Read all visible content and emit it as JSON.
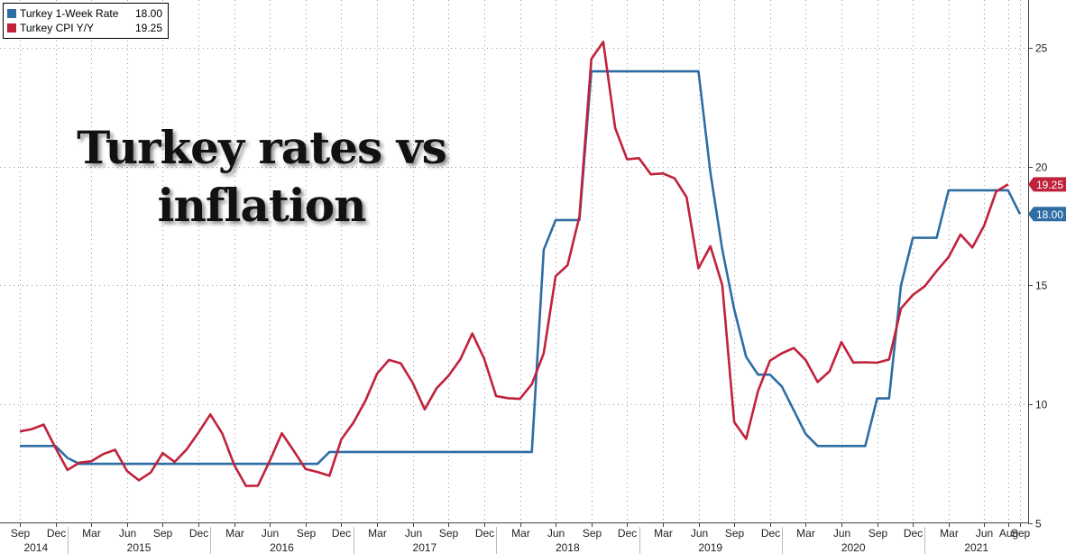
{
  "legend": {
    "items": [
      {
        "name": "Turkey 1-Week Rate",
        "value": "18.00",
        "color": "#2e6da4"
      },
      {
        "name": "Turkey CPI Y/Y",
        "value": "19.25",
        "color": "#c0223b"
      }
    ]
  },
  "overlay_title": [
    "Turkey rates vs",
    "inflation"
  ],
  "chart_data": {
    "type": "line",
    "title": "",
    "xlabel": "",
    "ylabel": "",
    "ylim": [
      5,
      27
    ],
    "xlim": [
      "2014-09",
      "2021-09"
    ],
    "y_ticks": [
      5,
      10,
      15,
      20,
      25
    ],
    "grid": true,
    "legend_position": "top-left",
    "x_month_ticks": [
      "Sep",
      "Dec",
      "Mar",
      "Jun",
      "Sep",
      "Dec",
      "Mar",
      "Jun",
      "Sep",
      "Dec",
      "Mar",
      "Jun",
      "Sep",
      "Dec",
      "Mar",
      "Jun",
      "Sep",
      "Dec",
      "Mar",
      "Jun",
      "Sep",
      "Dec",
      "Mar",
      "Jun",
      "Sep",
      "Dec",
      "Mar",
      "Jun",
      "Aug",
      "Sep"
    ],
    "x_month_tick_dates": [
      "2014-09",
      "2014-12",
      "2015-03",
      "2015-06",
      "2015-09",
      "2015-12",
      "2016-03",
      "2016-06",
      "2016-09",
      "2016-12",
      "2017-03",
      "2017-06",
      "2017-09",
      "2017-12",
      "2018-03",
      "2018-06",
      "2018-09",
      "2018-12",
      "2019-03",
      "2019-06",
      "2019-09",
      "2019-12",
      "2020-03",
      "2020-06",
      "2020-09",
      "2020-12",
      "2021-03",
      "2021-06",
      "2021-08",
      "2021-09"
    ],
    "x_year_labels": [
      "2014",
      "2015",
      "2016",
      "2017",
      "2018",
      "2019",
      "2020",
      "2021"
    ],
    "series": [
      {
        "name": "Turkey 1-Week Rate",
        "color": "#2e6da4",
        "last_value_label": "18.00",
        "x": [
          "2014-09",
          "2014-10",
          "2014-11",
          "2014-12",
          "2015-01",
          "2015-02",
          "2015-03",
          "2015-04",
          "2015-05",
          "2015-06",
          "2015-07",
          "2015-08",
          "2015-09",
          "2015-10",
          "2015-11",
          "2015-12",
          "2016-01",
          "2016-02",
          "2016-03",
          "2016-04",
          "2016-05",
          "2016-06",
          "2016-07",
          "2016-08",
          "2016-09",
          "2016-10",
          "2016-11",
          "2016-12",
          "2017-01",
          "2017-02",
          "2017-03",
          "2017-04",
          "2017-05",
          "2017-06",
          "2017-07",
          "2017-08",
          "2017-09",
          "2017-10",
          "2017-11",
          "2017-12",
          "2018-01",
          "2018-02",
          "2018-03",
          "2018-04",
          "2018-05",
          "2018-06",
          "2018-07",
          "2018-08",
          "2018-09",
          "2018-10",
          "2018-11",
          "2018-12",
          "2019-01",
          "2019-02",
          "2019-03",
          "2019-04",
          "2019-05",
          "2019-06",
          "2019-07",
          "2019-08",
          "2019-09",
          "2019-10",
          "2019-11",
          "2019-12",
          "2020-01",
          "2020-02",
          "2020-03",
          "2020-04",
          "2020-05",
          "2020-06",
          "2020-07",
          "2020-08",
          "2020-09",
          "2020-10",
          "2020-11",
          "2020-12",
          "2021-01",
          "2021-02",
          "2021-03",
          "2021-04",
          "2021-05",
          "2021-06",
          "2021-07",
          "2021-08",
          "2021-09"
        ],
        "y": [
          8.25,
          8.25,
          8.25,
          8.25,
          7.75,
          7.5,
          7.5,
          7.5,
          7.5,
          7.5,
          7.5,
          7.5,
          7.5,
          7.5,
          7.5,
          7.5,
          7.5,
          7.5,
          7.5,
          7.5,
          7.5,
          7.5,
          7.5,
          7.5,
          7.5,
          7.5,
          8.0,
          8.0,
          8.0,
          8.0,
          8.0,
          8.0,
          8.0,
          8.0,
          8.0,
          8.0,
          8.0,
          8.0,
          8.0,
          8.0,
          8.0,
          8.0,
          8.0,
          8.0,
          16.5,
          17.75,
          17.75,
          17.75,
          24.0,
          24.0,
          24.0,
          24.0,
          24.0,
          24.0,
          24.0,
          24.0,
          24.0,
          24.0,
          19.75,
          16.5,
          14.0,
          12.0,
          11.25,
          11.25,
          10.75,
          9.75,
          8.75,
          8.25,
          8.25,
          8.25,
          8.25,
          8.25,
          10.25,
          10.25,
          15.0,
          17.0,
          17.0,
          17.0,
          19.0,
          19.0,
          19.0,
          19.0,
          19.0,
          19.0,
          18.0
        ]
      },
      {
        "name": "Turkey CPI Y/Y",
        "color": "#c0223b",
        "last_value_label": "19.25",
        "x": [
          "2014-09",
          "2014-10",
          "2014-11",
          "2014-12",
          "2015-01",
          "2015-02",
          "2015-03",
          "2015-04",
          "2015-05",
          "2015-06",
          "2015-07",
          "2015-08",
          "2015-09",
          "2015-10",
          "2015-11",
          "2015-12",
          "2016-01",
          "2016-02",
          "2016-03",
          "2016-04",
          "2016-05",
          "2016-06",
          "2016-07",
          "2016-08",
          "2016-09",
          "2016-10",
          "2016-11",
          "2016-12",
          "2017-01",
          "2017-02",
          "2017-03",
          "2017-04",
          "2017-05",
          "2017-06",
          "2017-07",
          "2017-08",
          "2017-09",
          "2017-10",
          "2017-11",
          "2017-12",
          "2018-01",
          "2018-02",
          "2018-03",
          "2018-04",
          "2018-05",
          "2018-06",
          "2018-07",
          "2018-08",
          "2018-09",
          "2018-10",
          "2018-11",
          "2018-12",
          "2019-01",
          "2019-02",
          "2019-03",
          "2019-04",
          "2019-05",
          "2019-06",
          "2019-07",
          "2019-08",
          "2019-09",
          "2019-10",
          "2019-11",
          "2019-12",
          "2020-01",
          "2020-02",
          "2020-03",
          "2020-04",
          "2020-05",
          "2020-06",
          "2020-07",
          "2020-08",
          "2020-09",
          "2020-10",
          "2020-11",
          "2020-12",
          "2021-01",
          "2021-02",
          "2021-03",
          "2021-04",
          "2021-05",
          "2021-06",
          "2021-07",
          "2021-08"
        ],
        "y": [
          8.86,
          8.96,
          9.15,
          8.17,
          7.24,
          7.55,
          7.61,
          7.91,
          8.09,
          7.2,
          6.81,
          7.14,
          7.95,
          7.58,
          8.1,
          8.81,
          9.58,
          8.78,
          7.46,
          6.57,
          6.58,
          7.64,
          8.79,
          8.05,
          7.28,
          7.16,
          7.0,
          8.53,
          9.22,
          10.13,
          11.29,
          11.87,
          11.72,
          10.9,
          9.79,
          10.68,
          11.2,
          11.9,
          12.98,
          11.92,
          10.35,
          10.26,
          10.23,
          10.85,
          12.15,
          15.39,
          15.85,
          17.9,
          24.52,
          25.24,
          21.62,
          20.3,
          20.35,
          19.67,
          19.71,
          19.5,
          18.71,
          15.72,
          16.65,
          15.01,
          9.26,
          8.55,
          10.56,
          11.84,
          12.15,
          12.37,
          11.86,
          10.94,
          11.39,
          12.62,
          11.76,
          11.77,
          11.75,
          11.89,
          14.03,
          14.6,
          14.97,
          15.61,
          16.19,
          17.14,
          16.59,
          17.53,
          18.95,
          19.25
        ]
      }
    ]
  }
}
